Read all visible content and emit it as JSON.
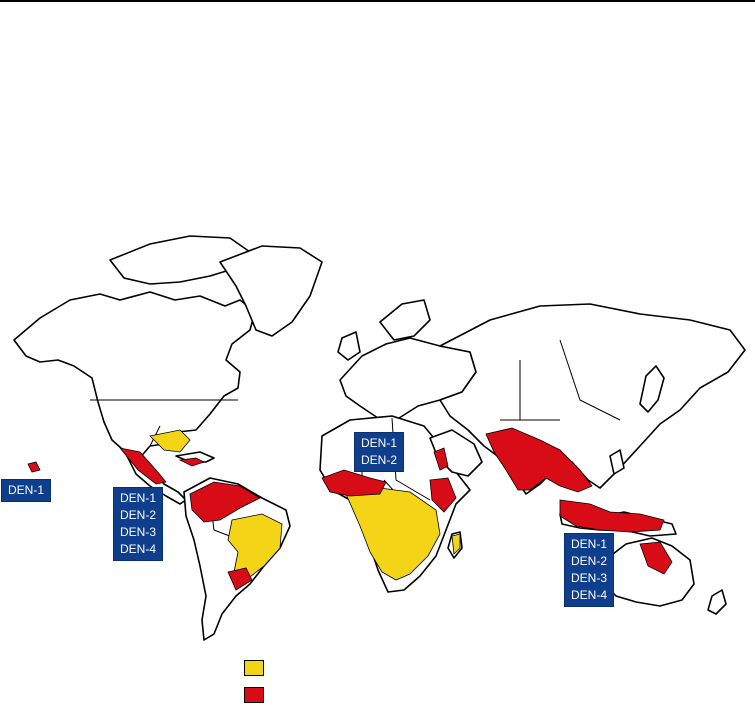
{
  "labels": {
    "pacific": [
      "DEN-1"
    ],
    "americas": [
      "DEN-1",
      "DEN-2",
      "DEN-3",
      "DEN-4"
    ],
    "africa": [
      "DEN-1",
      "DEN-2"
    ],
    "asia_pacific": [
      "DEN-1",
      "DEN-2",
      "DEN-3",
      "DEN-4"
    ]
  },
  "colors": {
    "label_bg": "#0f3e8c",
    "zone_yellow": "#f4d417",
    "zone_red": "#d80c17",
    "land": "#ffffff",
    "outline": "#000000"
  }
}
